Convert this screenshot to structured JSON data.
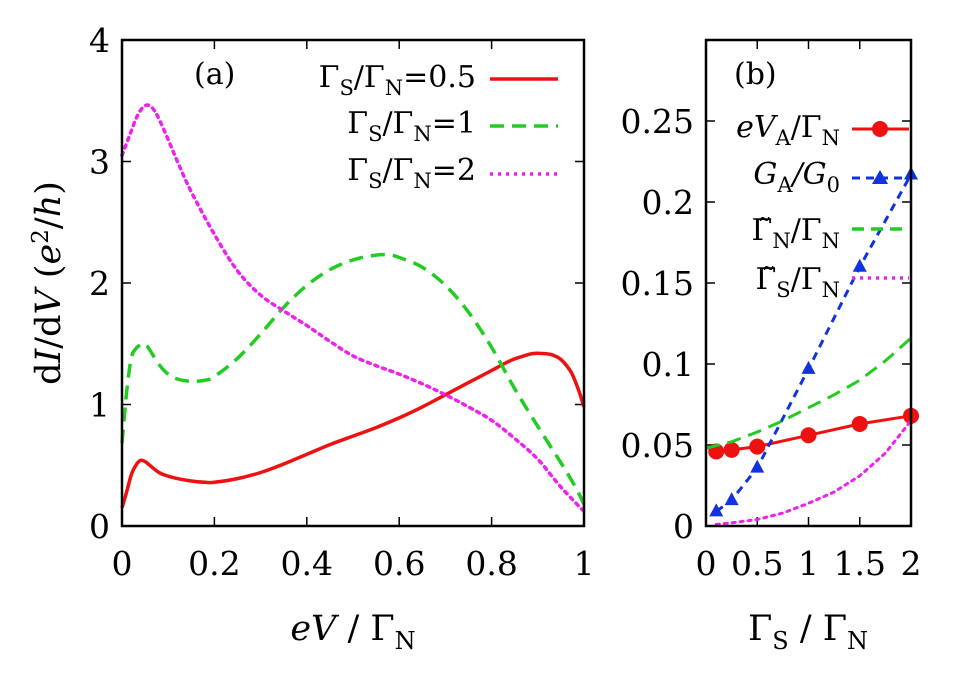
{
  "chart_data": [
    {
      "type": "line",
      "panel_label": "(a)",
      "xlabel": "eV / Γ_N",
      "ylabel": "dI/dV (e²/h)",
      "xlim": [
        0,
        1
      ],
      "ylim": [
        0,
        4
      ],
      "x_ticks": [
        "0",
        "0.2",
        "0.4",
        "0.6",
        "0.8",
        "1"
      ],
      "y_ticks": [
        "0",
        "1",
        "2",
        "3",
        "4"
      ],
      "legend_position": "top-right",
      "series": [
        {
          "name": "ΓS/ΓN=0.5",
          "color": "#ee1111",
          "style": "solid",
          "x": [
            0,
            0.01,
            0.02,
            0.03,
            0.04,
            0.05,
            0.06,
            0.08,
            0.1,
            0.12,
            0.15,
            0.18,
            0.2,
            0.25,
            0.3,
            0.35,
            0.4,
            0.45,
            0.5,
            0.55,
            0.6,
            0.65,
            0.7,
            0.75,
            0.8,
            0.84,
            0.87,
            0.89,
            0.91,
            0.93,
            0.95,
            0.97,
            0.98,
            0.99,
            1.0
          ],
          "y": [
            0.15,
            0.28,
            0.42,
            0.5,
            0.54,
            0.53,
            0.5,
            0.44,
            0.41,
            0.39,
            0.37,
            0.36,
            0.36,
            0.39,
            0.44,
            0.51,
            0.59,
            0.67,
            0.74,
            0.81,
            0.89,
            0.98,
            1.08,
            1.18,
            1.28,
            1.36,
            1.4,
            1.42,
            1.42,
            1.41,
            1.37,
            1.28,
            1.2,
            1.1,
            0.98
          ]
        },
        {
          "name": "ΓS/ΓN=1",
          "color": "#22cc22",
          "style": "dashed",
          "x": [
            0,
            0.01,
            0.02,
            0.03,
            0.04,
            0.05,
            0.06,
            0.08,
            0.1,
            0.12,
            0.15,
            0.18,
            0.2,
            0.25,
            0.3,
            0.35,
            0.4,
            0.45,
            0.5,
            0.55,
            0.58,
            0.6,
            0.65,
            0.7,
            0.75,
            0.8,
            0.85,
            0.9,
            0.95,
            0.98,
            1.0
          ],
          "y": [
            0.68,
            1.1,
            1.38,
            1.46,
            1.49,
            1.5,
            1.45,
            1.33,
            1.25,
            1.21,
            1.19,
            1.2,
            1.23,
            1.38,
            1.58,
            1.8,
            1.98,
            2.11,
            2.19,
            2.23,
            2.23,
            2.21,
            2.13,
            1.98,
            1.76,
            1.47,
            1.13,
            0.82,
            0.52,
            0.33,
            0.18
          ]
        },
        {
          "name": "ΓS/ΓN=2",
          "color": "#ee22ee",
          "style": "dotted",
          "x": [
            0,
            0.01,
            0.02,
            0.03,
            0.04,
            0.05,
            0.06,
            0.07,
            0.08,
            0.1,
            0.12,
            0.15,
            0.2,
            0.25,
            0.3,
            0.35,
            0.4,
            0.45,
            0.5,
            0.55,
            0.6,
            0.65,
            0.7,
            0.75,
            0.8,
            0.85,
            0.9,
            0.95,
            1.0
          ],
          "y": [
            3.05,
            3.15,
            3.25,
            3.35,
            3.42,
            3.46,
            3.46,
            3.42,
            3.35,
            3.18,
            3.0,
            2.75,
            2.4,
            2.1,
            1.9,
            1.77,
            1.65,
            1.52,
            1.4,
            1.32,
            1.25,
            1.17,
            1.08,
            0.98,
            0.87,
            0.72,
            0.55,
            0.32,
            0.12
          ]
        }
      ]
    },
    {
      "type": "line",
      "panel_label": "(b)",
      "xlabel": "ΓS / ΓN",
      "ylabel": "",
      "xlim": [
        0,
        2
      ],
      "ylim": [
        0,
        0.3
      ],
      "x_ticks": [
        "0",
        "0.5",
        "1",
        "1.5",
        "2"
      ],
      "y_ticks": [
        "0",
        "0.05",
        "0.1",
        "0.15",
        "0.2",
        "0.25"
      ],
      "legend_position": "top",
      "series": [
        {
          "name": "eV_A/Γ_N",
          "color": "#ee1111",
          "style": "solid-circles",
          "x": [
            0.1,
            0.25,
            0.5,
            1.0,
            1.5,
            2.0
          ],
          "y": [
            0.046,
            0.047,
            0.049,
            0.056,
            0.063,
            0.068
          ]
        },
        {
          "name": "G_A/G_0",
          "color": "#1133dd",
          "style": "dashed-triangles",
          "x": [
            0.1,
            0.25,
            0.5,
            1.0,
            1.5,
            2.0
          ],
          "y": [
            0.009,
            0.016,
            0.036,
            0.097,
            0.16,
            0.217
          ]
        },
        {
          "name": "Γ̃N/ΓN",
          "color": "#22cc22",
          "style": "dashed",
          "x": [
            0,
            0.25,
            0.5,
            0.75,
            1.0,
            1.25,
            1.5,
            1.75,
            2.0
          ],
          "y": [
            0.048,
            0.052,
            0.058,
            0.065,
            0.073,
            0.081,
            0.09,
            0.102,
            0.116
          ]
        },
        {
          "name": "Γ̃S/ΓN",
          "color": "#ee22ee",
          "style": "dotted",
          "x": [
            0.1,
            0.25,
            0.5,
            0.75,
            1.0,
            1.25,
            1.5,
            1.75,
            2.0
          ],
          "y": [
            0.001,
            0.002,
            0.004,
            0.008,
            0.014,
            0.021,
            0.031,
            0.045,
            0.065
          ]
        }
      ]
    }
  ],
  "legend_text": {
    "a": [
      {
        "main": "Γ",
        "sub1": "S",
        "mid": "/Γ",
        "sub2": "N",
        "tail": "=0.5"
      },
      {
        "main": "Γ",
        "sub1": "S",
        "mid": "/Γ",
        "sub2": "N",
        "tail": "=1"
      },
      {
        "main": "Γ",
        "sub1": "S",
        "mid": "/Γ",
        "sub2": "N",
        "tail": "=2"
      }
    ],
    "b": [
      {
        "a": "eV",
        "asub": "A",
        "b": "/Γ",
        "bsub": "N"
      },
      {
        "a": "G",
        "asub": "A",
        "b": "/G",
        "bsub": "0"
      },
      {
        "a": "Γ̃",
        "asub": "N",
        "b": "/Γ",
        "bsub": "N"
      },
      {
        "a": "Γ̃",
        "asub": "S",
        "b": "/Γ",
        "bsub": "N"
      }
    ]
  },
  "axis_text": {
    "a_ylabel": {
      "p1": "d",
      "p2": "I",
      "p3": "/d",
      "p4": "V",
      "p5": " (",
      "p6": "e",
      "p7": "2",
      "p8": "/",
      "p9": "h",
      "p10": ")"
    },
    "a_xlabel": {
      "p1": "eV",
      "p2": " / Γ",
      "p3": "N"
    },
    "b_xlabel": {
      "p1": "Γ",
      "p2": "S",
      "p3": " / Γ",
      "p4": "N"
    }
  }
}
